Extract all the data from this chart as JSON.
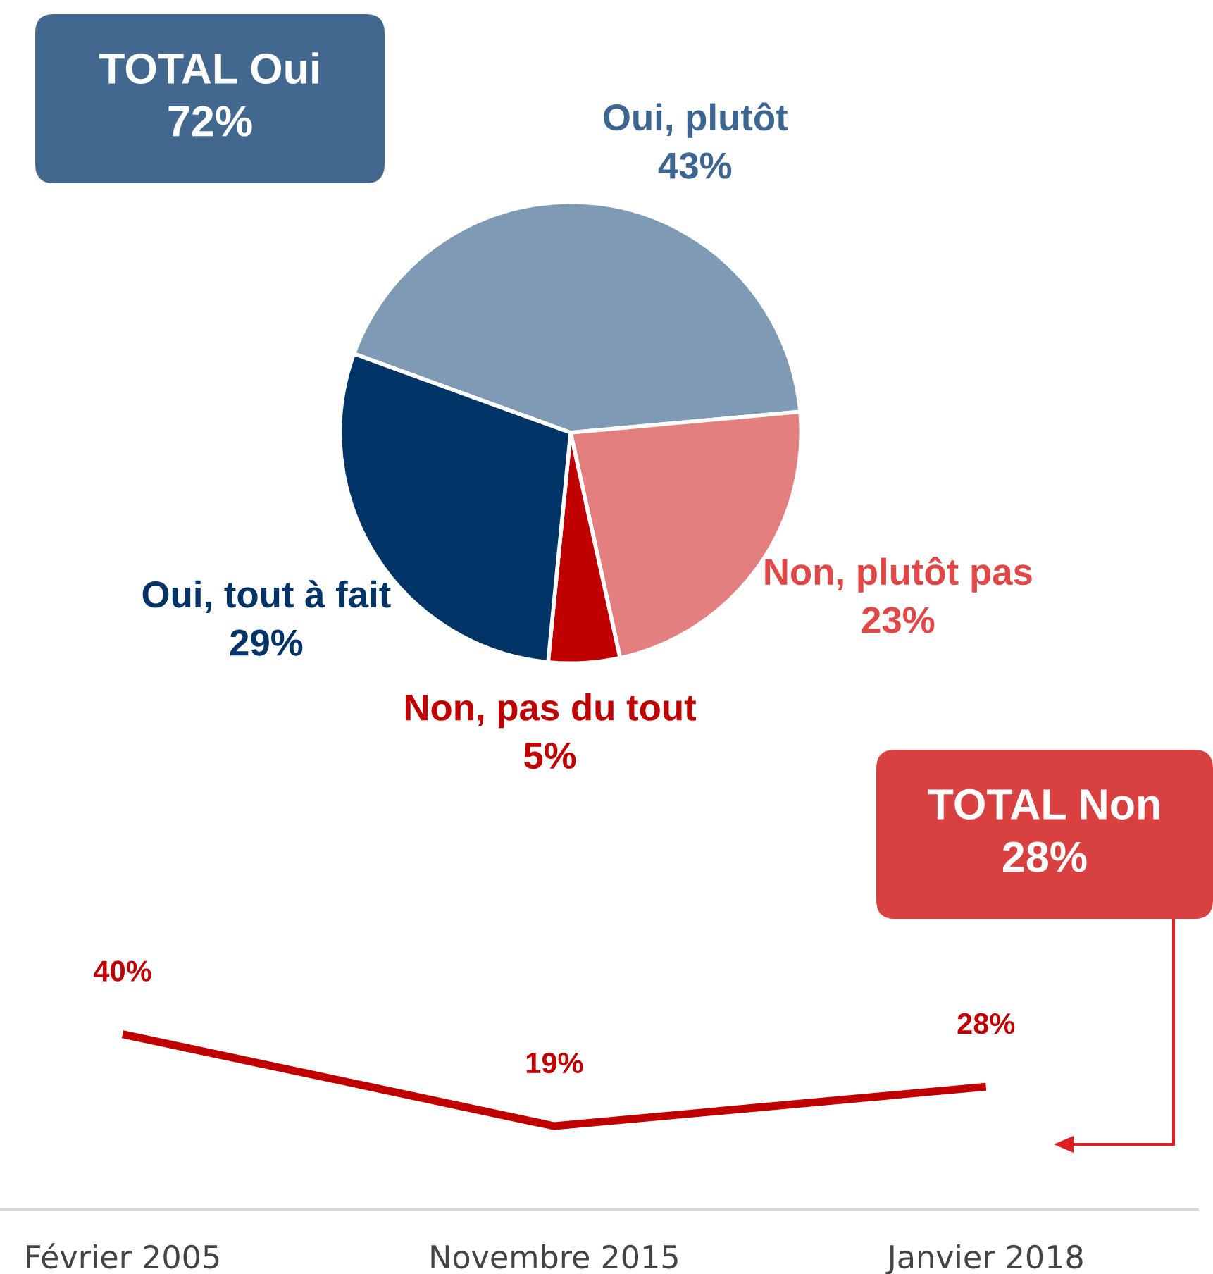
{
  "chart_data": [
    {
      "type": "pie",
      "categories": [
        "Oui, plutôt",
        "Non, plutôt pas",
        "Non, pas du tout",
        "Oui, tout à fait"
      ],
      "values": [
        43,
        23,
        5,
        29
      ],
      "colors": [
        "#7f9ab5",
        "#e47f7f",
        "#c00000",
        "#003366"
      ],
      "value_labels": [
        "43%",
        "23%",
        "5%",
        "29%"
      ],
      "annotations": [
        "TOTAL Oui\n72%",
        "TOTAL Non\n28%"
      ]
    },
    {
      "type": "line",
      "categories": [
        "Février 2005",
        "Novembre 2015",
        "Janvier 2018"
      ],
      "series": [
        {
          "color": "#c00000",
          "values": [
            40,
            19,
            28
          ],
          "value_labels": [
            "40%",
            "19%",
            "28%"
          ]
        }
      ]
    }
  ]
}
